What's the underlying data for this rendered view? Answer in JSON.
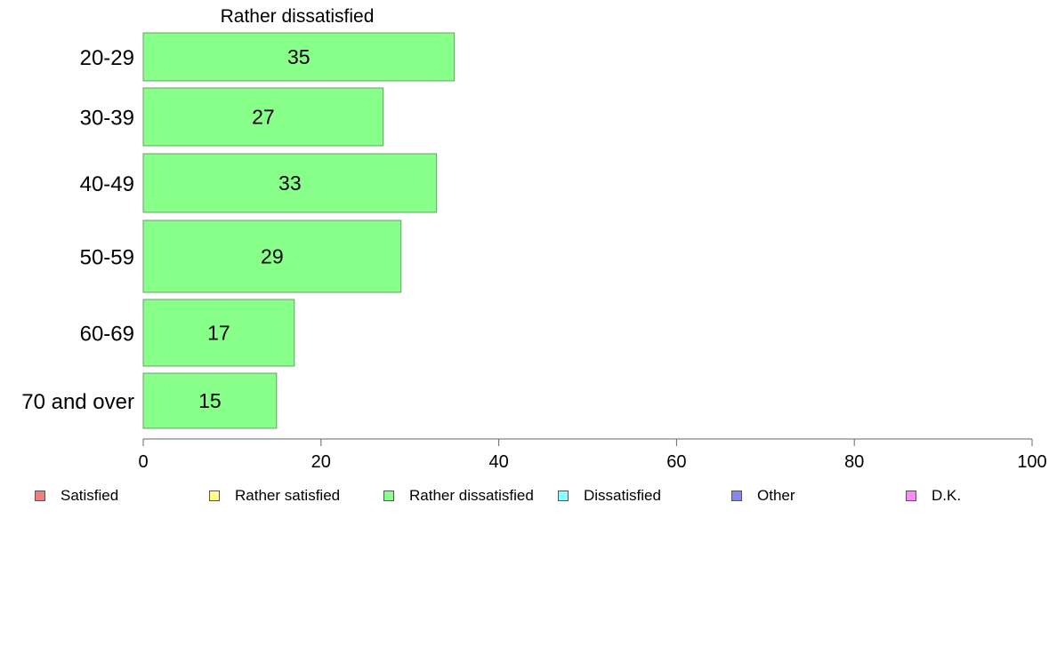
{
  "chart_data": {
    "type": "bar",
    "orientation": "horizontal",
    "title": "Rather dissatisfied",
    "categories": [
      "20-29",
      "30-39",
      "40-49",
      "50-59",
      "60-69",
      "70 and over"
    ],
    "series": [
      {
        "name": "Rather dissatisfied",
        "values": [
          35,
          27,
          33,
          29,
          17,
          15
        ],
        "color": "#88ff88"
      }
    ],
    "xlim": [
      0,
      100
    ],
    "xticks": [
      0,
      20,
      40,
      60,
      80,
      100
    ],
    "grid": false,
    "legend_position": "bottom",
    "legend": [
      {
        "label": "Satisfied",
        "color": "#f08080"
      },
      {
        "label": "Rather satisfied",
        "color": "#ffff88"
      },
      {
        "label": "Rather dissatisfied",
        "color": "#88ff88"
      },
      {
        "label": "Dissatisfied",
        "color": "#88ffff"
      },
      {
        "label": "Other",
        "color": "#8888ee"
      },
      {
        "label": "D.K.",
        "color": "#ff88ff"
      }
    ]
  }
}
